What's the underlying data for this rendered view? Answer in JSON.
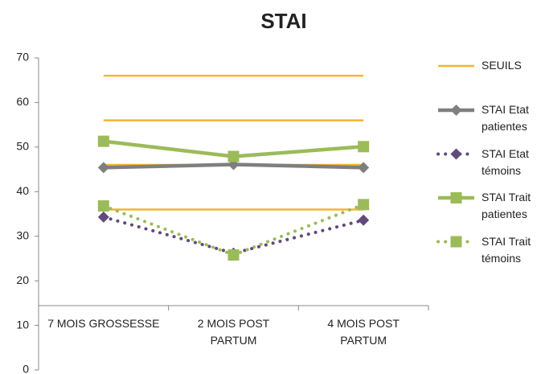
{
  "chart_data": {
    "type": "line",
    "title": "STAI",
    "categories": [
      "7 MOIS GROSSESSE",
      "2 MOIS POST PARTUM",
      "4 MOIS POST PARTUM"
    ],
    "ylim": [
      0,
      70
    ],
    "yticks": [
      0,
      10,
      20,
      30,
      40,
      50,
      60,
      70
    ],
    "legend": "right",
    "thresholds": {
      "name": "SEUILS",
      "color": "#f2b62e",
      "levels": [
        66,
        56,
        46,
        36
      ]
    },
    "series": [
      {
        "name": "STAI Etat patientes",
        "color": "#7f7f7f",
        "style": "solid",
        "marker": "diamond",
        "values": [
          45.4,
          46.1,
          45.4
        ]
      },
      {
        "name": "STAI Etat témoins",
        "color": "#604a7b",
        "style": "dotted",
        "marker": "diamond",
        "values": [
          34.3,
          26.2,
          33.6
        ]
      },
      {
        "name": "STAI Trait patientes",
        "color": "#9bbb59",
        "style": "solid",
        "marker": "square",
        "values": [
          51.3,
          47.9,
          50.1
        ]
      },
      {
        "name": "STAI Trait témoins",
        "color": "#9bbb59",
        "style": "dotted",
        "marker": "square",
        "values": [
          36.8,
          25.8,
          37.1
        ]
      }
    ]
  }
}
